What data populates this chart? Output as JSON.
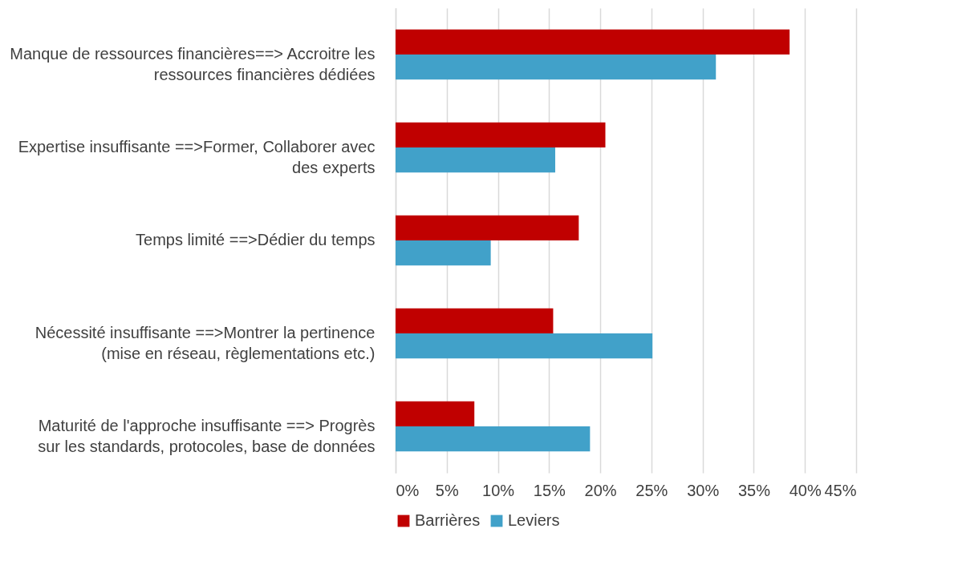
{
  "chart_data": {
    "type": "bar",
    "orientation": "horizontal",
    "categories": [
      "Manque de ressources financières==> Accroitre les ressources financières dédiées",
      "Expertise insuffisante ==>Former, Collaborer avec des experts",
      "Temps limité ==>Dédier du temps",
      "Nécessité insuffisante ==>Montrer la pertinence (mise en réseau, règlementations etc.)",
      "Maturité de l'approche insuffisante ==> Progrès sur les standards, protocoles, base de données"
    ],
    "series": [
      {
        "name": "Barrières",
        "color": "#c00000",
        "values": [
          38.5,
          20.5,
          17.9,
          15.4,
          7.7
        ]
      },
      {
        "name": "Leviers",
        "color": "#41a1c9",
        "values": [
          31.3,
          15.6,
          9.3,
          25.1,
          19.0
        ]
      }
    ],
    "xlim": [
      0,
      45
    ],
    "xticks": [
      {
        "value": 0,
        "label": "0%"
      },
      {
        "value": 5,
        "label": "5%"
      },
      {
        "value": 10,
        "label": "10%"
      },
      {
        "value": 15,
        "label": "15%"
      },
      {
        "value": 20,
        "label": "20%"
      },
      {
        "value": 25,
        "label": "25%"
      },
      {
        "value": 30,
        "label": "30%"
      },
      {
        "value": 35,
        "label": "35%"
      },
      {
        "value": 40,
        "label": "40%"
      },
      {
        "value": 45,
        "label": "45%"
      }
    ],
    "grid": "x",
    "legend": "bottom"
  }
}
